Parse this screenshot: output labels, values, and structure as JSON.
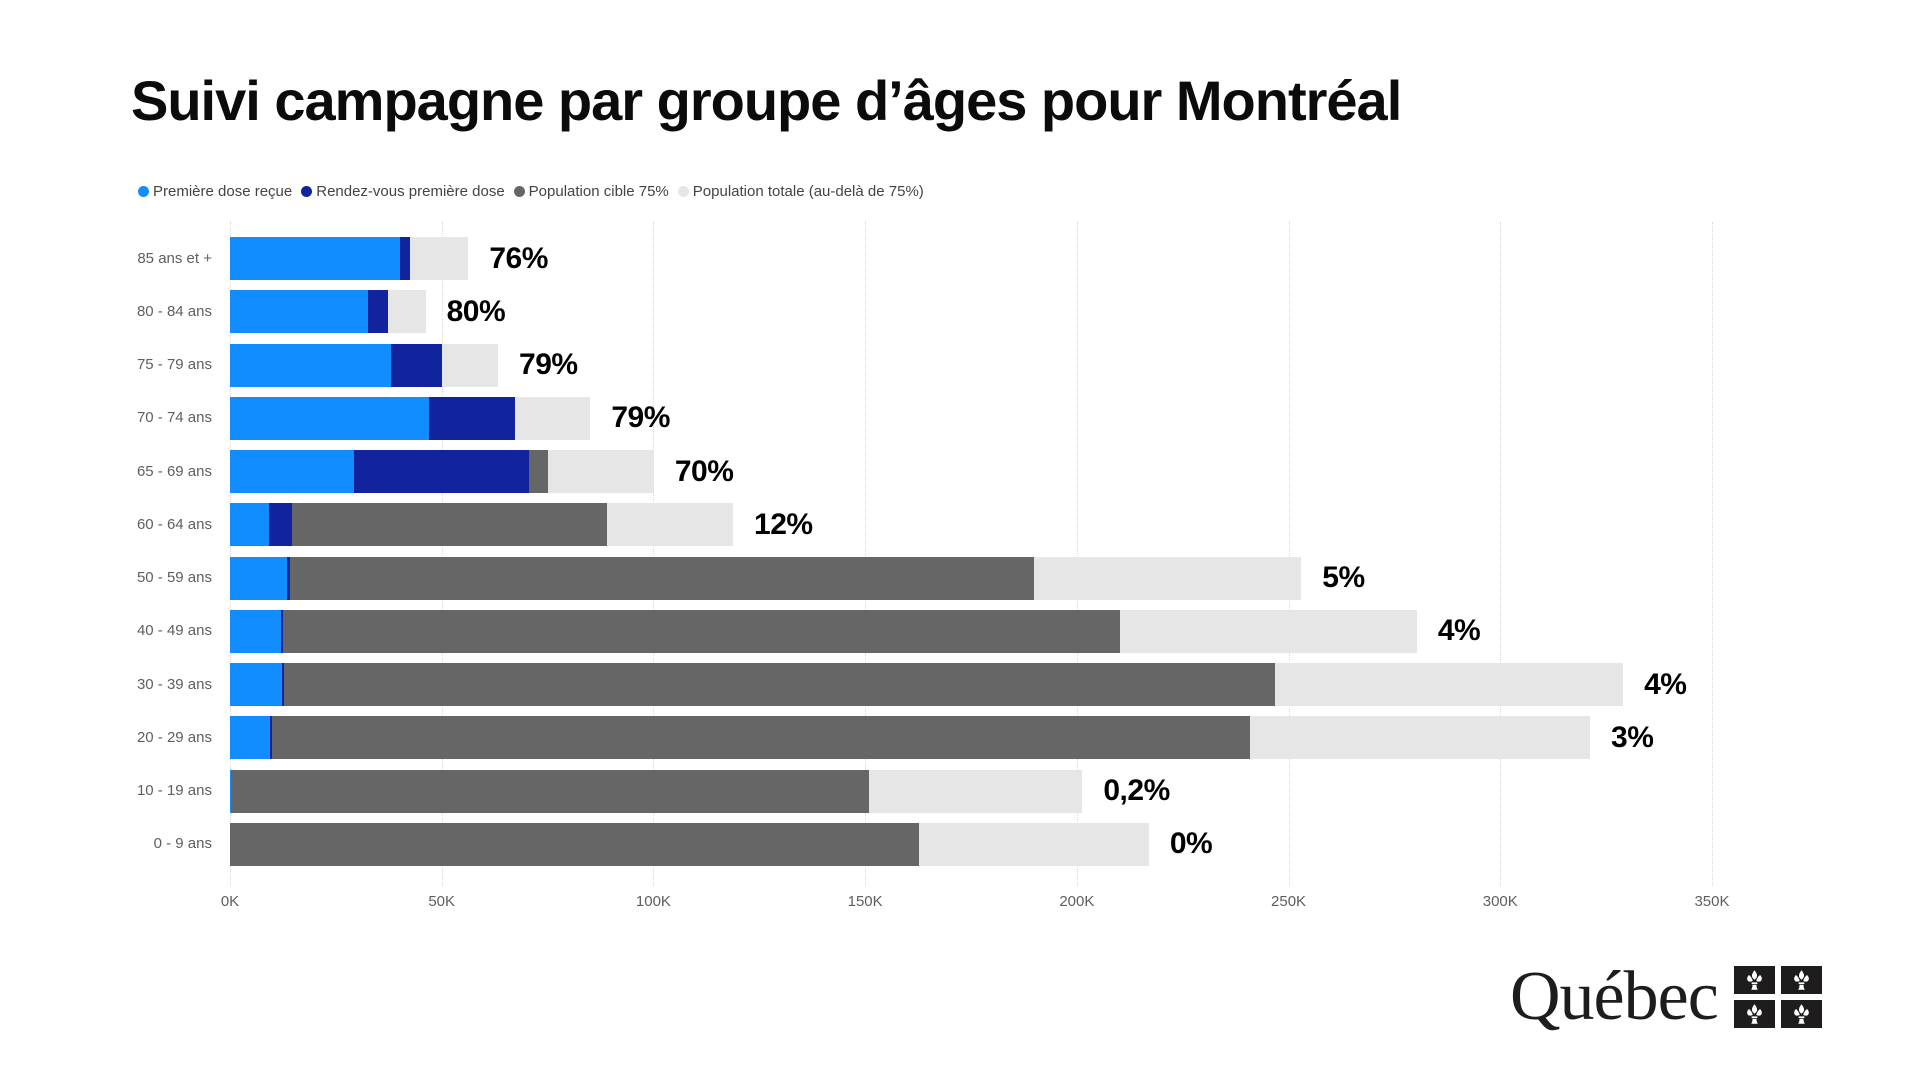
{
  "title": "Suivi campagne par groupe d’âges pour Montréal",
  "colors": {
    "first_dose": "#118DFF",
    "appointment": "#12239E",
    "target_75": "#666666",
    "total_beyond_75": "#E6E6E6",
    "axis_text": "#605E5C",
    "gridline": "#D8D8D8"
  },
  "legend": [
    {
      "label": "Première dose reçue",
      "color": "#118DFF"
    },
    {
      "label": "Rendez-vous première dose",
      "color": "#12239E"
    },
    {
      "label": "Population cible 75%",
      "color": "#666666"
    },
    {
      "label": "Population totale (au-delà de 75%)",
      "color": "#E6E6E6"
    }
  ],
  "chart_data": {
    "type": "bar",
    "orientation": "horizontal",
    "stacked": true,
    "grid": "vertical-dotted",
    "xlim": [
      0,
      350000
    ],
    "x_ticks": [
      "0K",
      "50K",
      "100K",
      "150K",
      "200K",
      "250K",
      "300K",
      "350K"
    ],
    "x_tick_values": [
      0,
      50000,
      100000,
      150000,
      200000,
      250000,
      300000,
      350000
    ],
    "categories": [
      "85 ans et +",
      "80 - 84 ans",
      "75 - 79 ans",
      "70 - 74 ans",
      "65 - 69 ans",
      "60 - 64 ans",
      "50 - 59 ans",
      "40 - 49 ans",
      "30 - 39 ans",
      "20 - 29 ans",
      "10 - 19 ans",
      "0 - 9 ans"
    ],
    "series": [
      {
        "name": "Première dose reçue",
        "color": "#118DFF",
        "values": [
          40200,
          32500,
          38100,
          47000,
          29200,
          9300,
          13500,
          12000,
          12200,
          9400,
          300,
          0
        ]
      },
      {
        "name": "Rendez-vous première dose",
        "color": "#12239E",
        "values": [
          2400,
          4700,
          12000,
          20200,
          41500,
          5300,
          600,
          600,
          600,
          600,
          0,
          0
        ]
      },
      {
        "name": "Population cible 75%",
        "color": "#666666",
        "values": [
          0,
          0,
          0,
          0,
          4400,
          74400,
          175700,
          197600,
          233900,
          231000,
          150700,
          162800
        ]
      },
      {
        "name": "Population totale (au-delà de 75%)",
        "color": "#E6E6E6",
        "values": [
          13700,
          9000,
          13200,
          17900,
          25000,
          29800,
          63200,
          70100,
          82300,
          80200,
          50300,
          54200
        ]
      }
    ],
    "bar_labels": [
      "76%",
      "80%",
      "79%",
      "79%",
      "70%",
      "12%",
      "5%",
      "4%",
      "4%",
      "3%",
      "0,2%",
      "0%"
    ]
  },
  "logo": {
    "text": "Québec",
    "flag_icon": "fleur-de-lis-icon"
  }
}
